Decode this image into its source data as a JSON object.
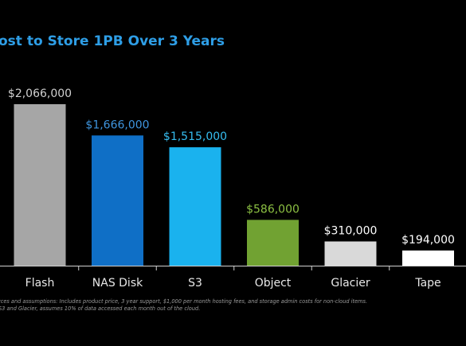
{
  "chart_data": {
    "type": "bar",
    "title": "ost to Store 1PB Over 3 Years",
    "categories": [
      "Flash",
      "NAS Disk",
      "S3",
      "Object",
      "Glacier",
      "Tape"
    ],
    "values": [
      2066000,
      1666000,
      1515000,
      586000,
      310000,
      194000
    ],
    "value_labels": [
      "$2,066,000",
      "$1,666,000",
      "$1,515,000",
      "$586,000",
      "$310,000",
      "$194,000"
    ],
    "colors": [
      "#a6a6a6",
      "#0f6fc6",
      "#1ab2ee",
      "#71a232",
      "#d9d9d9",
      "#ffffff"
    ],
    "value_label_colors": [
      "#d0d0d0",
      "#3f95de",
      "#36bdf0",
      "#8cc043",
      "#ffffff",
      "#ffffff"
    ],
    "notes": [
      "rces and assumptions:  Includes product price, 3 year support, $1,000 per month hosting fees, and storage admin costs for non-cloud items.",
      "S3 and Glacier, assumes 10% of data accessed each month out of the cloud."
    ]
  }
}
